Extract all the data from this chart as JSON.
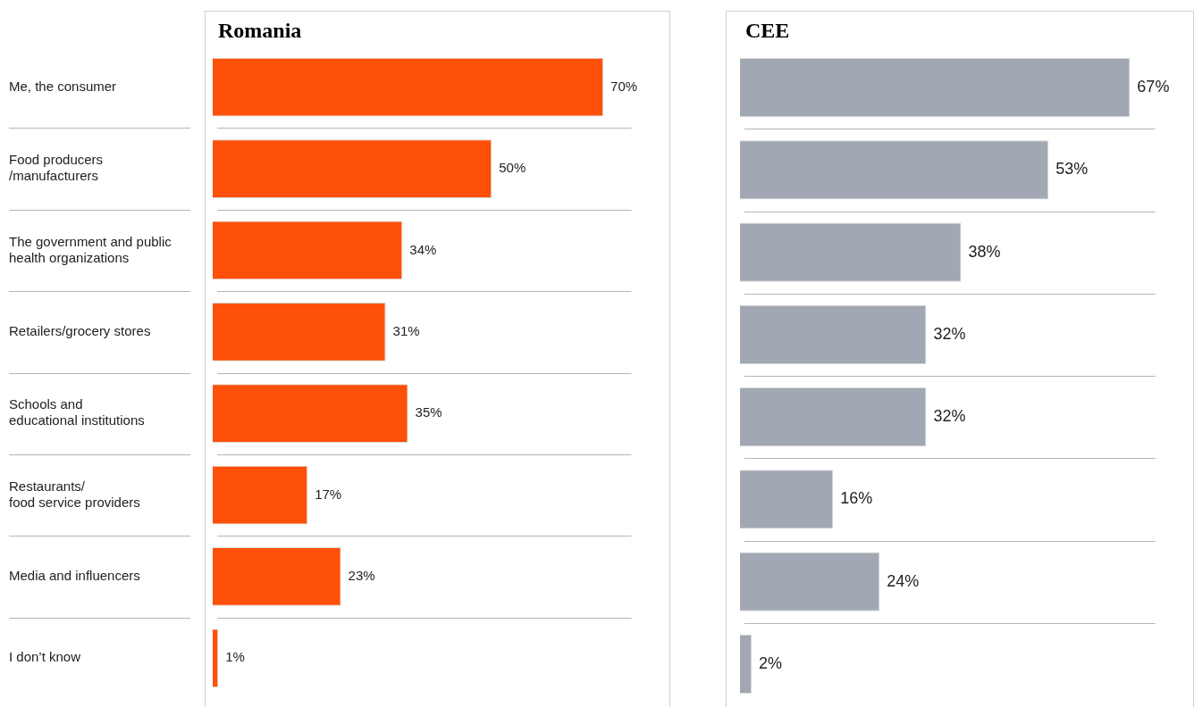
{
  "chart_data": [
    {
      "type": "bar",
      "title": "Romania",
      "orientation": "horizontal",
      "categories": [
        "Me, the consumer",
        "Food producers\n/manufacturers",
        "The government and public\nhealth organizations",
        "Retailers/grocery stores",
        "Schools and\neducational institutions",
        "Restaurants/\nfood service providers",
        "Media and influencers",
        "I don’t know"
      ],
      "values": [
        70,
        50,
        34,
        31,
        35,
        17,
        23,
        1
      ],
      "color": "#fe5009",
      "value_labels": [
        "70%",
        "50%",
        "34%",
        "31%",
        "35%",
        "17%",
        "23%",
        "1%"
      ],
      "xlim": [
        0,
        82
      ],
      "grid": "y",
      "tick_labels": "y",
      "legend": false
    },
    {
      "type": "bar",
      "title": "CEE",
      "orientation": "horizontal",
      "categories": [
        null,
        null,
        null,
        null,
        null,
        null,
        null,
        null
      ],
      "values": [
        67,
        53,
        38,
        32,
        32,
        16,
        24,
        2
      ],
      "color": "#a2a8b3",
      "value_labels": [
        "67%",
        "53%",
        "38%",
        "32%",
        "32%",
        "16%",
        "24%",
        "2%"
      ],
      "xlim": [
        0,
        78
      ],
      "grid": "y",
      "tick_labels": false,
      "legend": false
    }
  ]
}
